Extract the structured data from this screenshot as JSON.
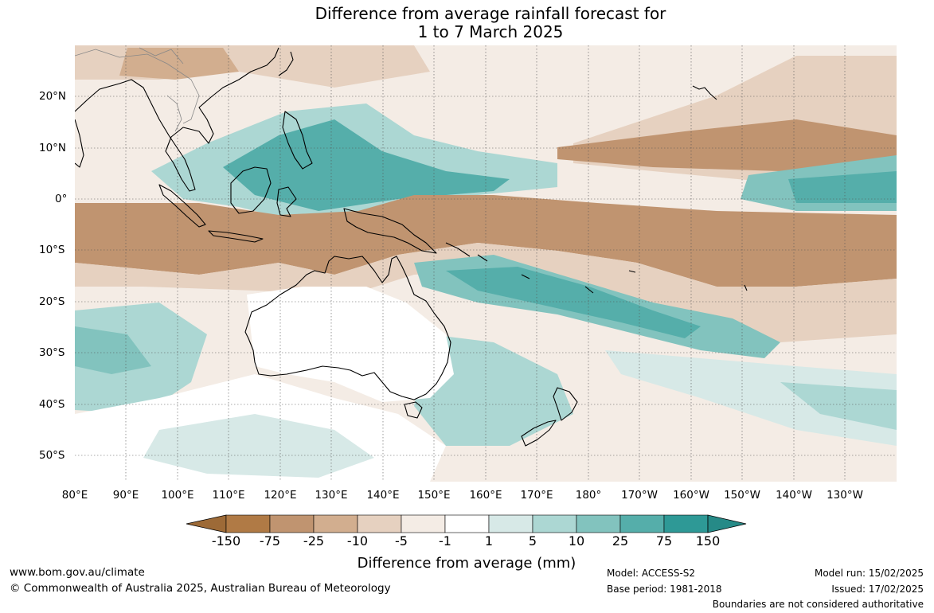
{
  "title_line1": "Difference from average rainfall forecast for",
  "title_line2": "1 to 7 March 2025",
  "map": {
    "lat_labels": [
      "20°N",
      "10°N",
      "0°",
      "10°S",
      "20°S",
      "30°S",
      "40°S",
      "50°S"
    ],
    "lon_labels": [
      "80°E",
      "90°E",
      "100°E",
      "110°E",
      "120°E",
      "130°E",
      "140°E",
      "150°E",
      "160°E",
      "170°E",
      "180°",
      "170°W",
      "160°W",
      "150°W",
      "140°W",
      "130°W"
    ]
  },
  "colorbar": {
    "title": "Difference from average (mm)",
    "labels": [
      "-150",
      "-75",
      "-25",
      "-10",
      "-5",
      "-1",
      "1",
      "5",
      "10",
      "25",
      "75",
      "150"
    ],
    "colors": [
      "#9d6a37",
      "#b07a45",
      "#c09470",
      "#d2ae8f",
      "#e6d1c0",
      "#f4ece5",
      "#ffffff",
      "#d7e9e7",
      "#acd7d3",
      "#82c3be",
      "#55aeaa",
      "#2e9996",
      "#268a87"
    ]
  },
  "footer": {
    "website": "www.bom.gov.au/climate",
    "copyright": "© Commonwealth of Australia 2025, Australian Bureau of Meteorology",
    "model": "Model: ACCESS-S2",
    "base_period": "Base period: 1981-2018",
    "model_run": "Model run: 15/02/2025",
    "issued": "Issued: 17/02/2025",
    "disclaimer": "Boundaries are not considered authoritative"
  }
}
